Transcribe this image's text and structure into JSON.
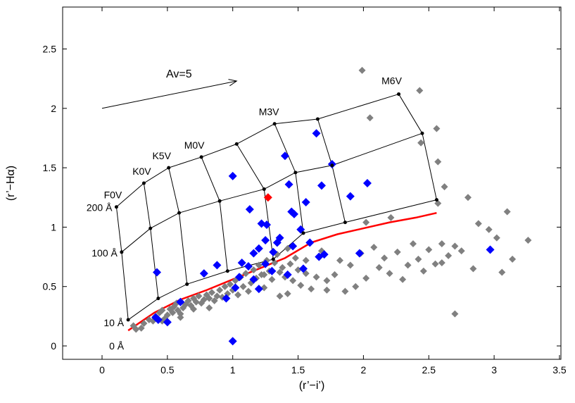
{
  "chart_data": {
    "type": "scatter",
    "xlabel": "(r’−i’)",
    "ylabel": "(r’−Hα)",
    "xlim": [
      -0.3,
      3.5
    ],
    "ylim": [
      -0.1,
      2.8
    ],
    "xticks": [
      0,
      0.5,
      1,
      1.5,
      2,
      2.5,
      3,
      3.5
    ],
    "xtick_labels": [
      "0",
      "0.5",
      "1",
      "1.5",
      "2",
      "2.5",
      "3",
      "3.5"
    ],
    "yticks": [
      0,
      0.5,
      1,
      1.5,
      2,
      2.5
    ],
    "ytick_labels": [
      "0",
      "0.5",
      "1",
      "1.5",
      "2",
      "2.5"
    ],
    "grid": false,
    "colors": {
      "gray_points": "#808080",
      "blue_points": "#0000ff",
      "red_point": "#ff0000",
      "red_line": "#ff0000",
      "grid_lines": "#000000"
    },
    "extinction_vector": {
      "label": "Av=5",
      "from": [
        0.0,
        2.0
      ],
      "to": [
        1.03,
        2.23
      ]
    },
    "spectral_types": [
      "F0V",
      "K0V",
      "K5V",
      "M0V",
      "M3V",
      "M6V"
    ],
    "ew_labels": [
      "0 Å",
      "10 Å",
      "100 Å",
      "200 Å"
    ],
    "mesh": {
      "rows": [
        {
          "label": "10 Å",
          "points": [
            [
              0.2,
              0.22
            ],
            [
              0.43,
              0.4
            ],
            [
              0.65,
              0.52
            ],
            [
              0.96,
              0.63
            ],
            [
              1.31,
              0.73
            ],
            [
              1.54,
              0.95
            ],
            [
              1.86,
              1.04
            ],
            [
              2.56,
              1.23
            ]
          ]
        },
        {
          "label": "100 Å",
          "points": [
            [
              0.15,
              0.79
            ],
            [
              0.37,
              0.99
            ],
            [
              0.59,
              1.12
            ],
            [
              0.9,
              1.22
            ],
            [
              1.24,
              1.32
            ],
            [
              1.48,
              1.46
            ],
            [
              1.76,
              1.52
            ],
            [
              2.45,
              1.79
            ]
          ]
        },
        {
          "label": "200 Å",
          "points": [
            [
              0.11,
              1.17
            ],
            [
              0.32,
              1.37
            ],
            [
              0.51,
              1.5
            ],
            [
              0.76,
              1.59
            ],
            [
              1.03,
              1.7
            ],
            [
              1.32,
              1.87
            ],
            [
              1.65,
              1.91
            ],
            [
              2.27,
              2.12
            ]
          ]
        }
      ]
    },
    "zero_ew_line": {
      "label": "0 Å",
      "x": [
        0.2,
        0.4,
        0.6,
        0.8,
        1.0,
        1.2,
        1.4,
        1.6,
        1.8,
        2.0,
        2.2,
        2.4,
        2.56
      ],
      "y": [
        0.13,
        0.28,
        0.39,
        0.47,
        0.56,
        0.65,
        0.74,
        0.87,
        0.94,
        0.99,
        1.04,
        1.08,
        1.12
      ]
    },
    "series": [
      {
        "color": "gray",
        "points": [
          [
            0.32,
            0.19
          ],
          [
            0.36,
            0.22
          ],
          [
            0.39,
            0.21
          ],
          [
            0.41,
            0.25
          ],
          [
            0.44,
            0.28
          ],
          [
            0.46,
            0.3
          ],
          [
            0.48,
            0.23
          ],
          [
            0.5,
            0.26
          ],
          [
            0.52,
            0.31
          ],
          [
            0.54,
            0.28
          ],
          [
            0.55,
            0.33
          ],
          [
            0.57,
            0.36
          ],
          [
            0.58,
            0.3
          ],
          [
            0.6,
            0.27
          ],
          [
            0.62,
            0.32
          ],
          [
            0.64,
            0.35
          ],
          [
            0.66,
            0.38
          ],
          [
            0.68,
            0.34
          ],
          [
            0.7,
            0.4
          ],
          [
            0.72,
            0.37
          ],
          [
            0.74,
            0.42
          ],
          [
            0.76,
            0.36
          ],
          [
            0.78,
            0.39
          ],
          [
            0.8,
            0.43
          ],
          [
            0.82,
            0.4
          ],
          [
            0.84,
            0.45
          ],
          [
            0.86,
            0.38
          ],
          [
            0.88,
            0.42
          ],
          [
            0.9,
            0.47
          ],
          [
            0.92,
            0.41
          ],
          [
            0.94,
            0.5
          ],
          [
            0.96,
            0.44
          ],
          [
            0.98,
            0.52
          ],
          [
            1.0,
            0.47
          ],
          [
            1.02,
            0.55
          ],
          [
            1.04,
            0.43
          ],
          [
            1.06,
            0.58
          ],
          [
            1.08,
            0.5
          ],
          [
            1.1,
            0.61
          ],
          [
            1.12,
            0.46
          ],
          [
            1.14,
            0.53
          ],
          [
            1.16,
            0.64
          ],
          [
            1.18,
            0.57
          ],
          [
            1.2,
            0.68
          ],
          [
            1.22,
            0.6
          ],
          [
            1.24,
            0.49
          ],
          [
            1.26,
            0.72
          ],
          [
            1.28,
            0.63
          ],
          [
            1.3,
            0.56
          ],
          [
            1.32,
            0.7
          ],
          [
            1.34,
            0.77
          ],
          [
            1.36,
            0.62
          ],
          [
            1.38,
            0.66
          ],
          [
            1.4,
            0.58
          ],
          [
            1.42,
            0.82
          ],
          [
            1.44,
            0.69
          ],
          [
            1.46,
            0.55
          ],
          [
            1.48,
            0.74
          ],
          [
            1.5,
            0.64
          ],
          [
            1.52,
            0.51
          ],
          [
            1.56,
            0.72
          ],
          [
            1.6,
            0.48
          ],
          [
            1.64,
            0.58
          ],
          [
            1.68,
            0.8
          ],
          [
            1.72,
            0.55
          ],
          [
            1.78,
            0.6
          ],
          [
            1.82,
            0.72
          ],
          [
            1.86,
            0.46
          ],
          [
            1.9,
            0.68
          ],
          [
            1.94,
            0.5
          ],
          [
            1.98,
            0.78
          ],
          [
            2.02,
            0.57
          ],
          [
            2.08,
            0.83
          ],
          [
            2.12,
            0.66
          ],
          [
            2.16,
            0.74
          ],
          [
            2.2,
            0.61
          ],
          [
            2.26,
            0.79
          ],
          [
            2.3,
            0.56
          ],
          [
            2.34,
            0.68
          ],
          [
            2.38,
            0.86
          ],
          [
            2.42,
            0.73
          ],
          [
            2.46,
            0.63
          ],
          [
            2.5,
            0.81
          ],
          [
            2.55,
            0.69
          ],
          [
            2.6,
            0.86
          ],
          [
            2.65,
            0.76
          ],
          [
            2.7,
            0.84
          ],
          [
            2.75,
            0.8
          ],
          [
            2.84,
            0.65
          ],
          [
            2.88,
            1.03
          ],
          [
            2.96,
            0.98
          ],
          [
            3.02,
            0.91
          ],
          [
            3.06,
            0.62
          ],
          [
            3.1,
            1.13
          ],
          [
            3.14,
            0.73
          ],
          [
            3.26,
            0.89
          ],
          [
            2.7,
            0.27
          ],
          [
            2.6,
            0.7
          ],
          [
            1.24,
            0.6
          ],
          [
            0.26,
            0.14
          ],
          [
            0.24,
            0.17
          ],
          [
            0.3,
            0.15
          ],
          [
            0.46,
            0.21
          ],
          [
            0.6,
            0.24
          ],
          [
            0.7,
            0.31
          ],
          [
            0.82,
            0.32
          ],
          [
            1.36,
            0.42
          ],
          [
            1.42,
            0.44
          ],
          [
            1.56,
            0.61
          ],
          [
            1.72,
            0.47
          ],
          [
            1.99,
            2.32
          ],
          [
            2.43,
            2.15
          ],
          [
            2.05,
            1.92
          ],
          [
            2.56,
            1.83
          ],
          [
            2.44,
            1.71
          ],
          [
            2.57,
            1.55
          ],
          [
            2.62,
            1.34
          ],
          [
            2.57,
            1.2
          ],
          [
            2.8,
            1.25
          ],
          [
            2.02,
            1.04
          ],
          [
            2.21,
            1.08
          ]
        ]
      },
      {
        "color": "blue",
        "points": [
          [
            1.0,
            0.04
          ],
          [
            0.5,
            0.2
          ],
          [
            0.41,
            0.24
          ],
          [
            0.42,
            0.62
          ],
          [
            0.88,
            0.68
          ],
          [
            1.0,
            1.43
          ],
          [
            1.13,
            1.15
          ],
          [
            1.16,
            0.78
          ],
          [
            1.22,
            1.03
          ],
          [
            1.26,
            1.02
          ],
          [
            1.25,
            0.89
          ],
          [
            1.31,
            0.79
          ],
          [
            1.34,
            0.87
          ],
          [
            1.4,
            1.6
          ],
          [
            1.43,
            1.36
          ],
          [
            1.45,
            1.13
          ],
          [
            1.47,
            1.11
          ],
          [
            1.52,
            0.98
          ],
          [
            1.56,
            1.21
          ],
          [
            1.59,
            0.87
          ],
          [
            1.64,
            1.79
          ],
          [
            1.68,
            1.35
          ],
          [
            1.7,
            0.77
          ],
          [
            1.76,
            1.53
          ],
          [
            1.9,
            1.26
          ],
          [
            1.97,
            0.78
          ],
          [
            2.03,
            1.37
          ],
          [
            2.97,
            0.81
          ],
          [
            1.07,
            0.7
          ],
          [
            1.12,
            0.67
          ],
          [
            1.2,
            0.82
          ],
          [
            1.25,
            0.69
          ],
          [
            1.3,
            0.63
          ],
          [
            1.36,
            0.91
          ],
          [
            1.46,
            0.84
          ],
          [
            1.54,
            0.65
          ],
          [
            0.95,
            0.4
          ],
          [
            1.02,
            0.49
          ],
          [
            1.16,
            0.56
          ],
          [
            1.2,
            0.48
          ],
          [
            0.6,
            0.37
          ],
          [
            0.78,
            0.61
          ],
          [
            1.42,
            0.6
          ],
          [
            0.43,
            0.22
          ],
          [
            1.66,
            0.75
          ],
          [
            1.05,
            0.58
          ]
        ]
      },
      {
        "color": "red",
        "points": [
          [
            1.27,
            1.25
          ]
        ]
      }
    ]
  }
}
